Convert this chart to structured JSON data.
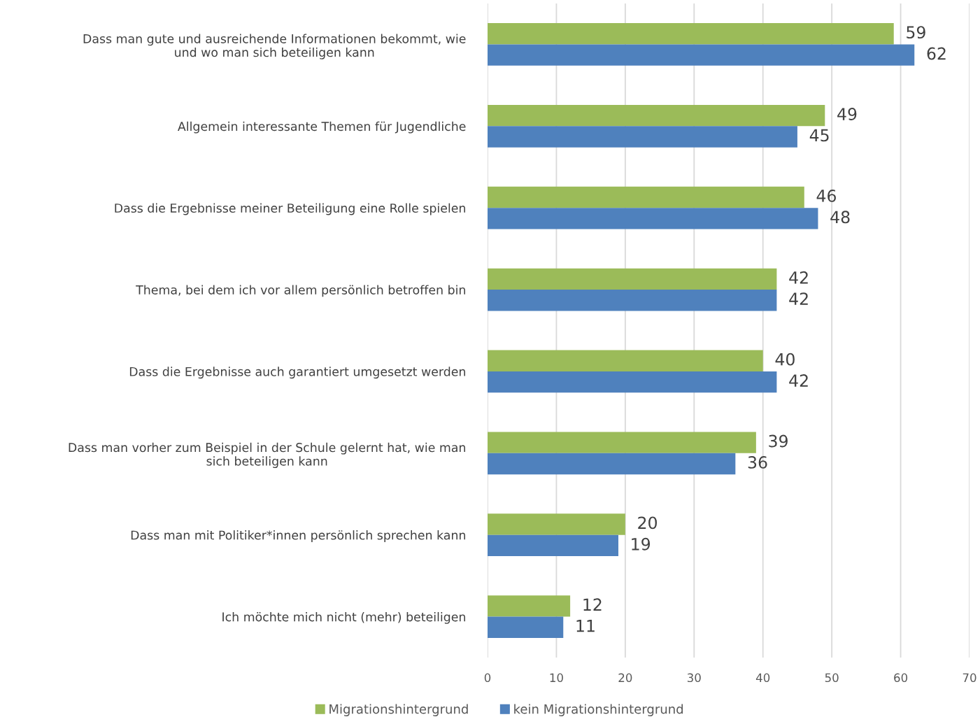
{
  "chart_data": {
    "type": "bar",
    "orientation": "horizontal",
    "categories": [
      "Dass man gute und ausreichende Informationen bekommt, wie\nund wo man sich beteiligen kann",
      "Allgemein interessante Themen für Jugendliche",
      "Dass die Ergebnisse meiner Beteiligung eine Rolle spielen",
      "Thema, bei dem ich vor allem persönlich betroffen bin",
      "Dass die Ergebnisse auch garantiert umgesetzt werden",
      "Dass man vorher zum Beispiel in der Schule gelernt hat, wie man\nsich beteiligen kann",
      "Dass man mit Politiker*innen persönlich sprechen kann",
      "Ich möchte mich nicht (mehr) beteiligen"
    ],
    "series": [
      {
        "name": "Migrationshintergrund",
        "color": "#9bbb59",
        "values": [
          59,
          49,
          46,
          42,
          40,
          39,
          20,
          12
        ]
      },
      {
        "name": "kein Migrationshintergrund",
        "color": "#4f81bd",
        "values": [
          62,
          45,
          48,
          42,
          42,
          36,
          19,
          11
        ]
      }
    ],
    "xlim": [
      0,
      70
    ],
    "xticks": [
      0,
      10,
      20,
      30,
      40,
      50,
      60,
      70
    ],
    "grid": "x",
    "legend": "bottom",
    "data_labels": true
  }
}
